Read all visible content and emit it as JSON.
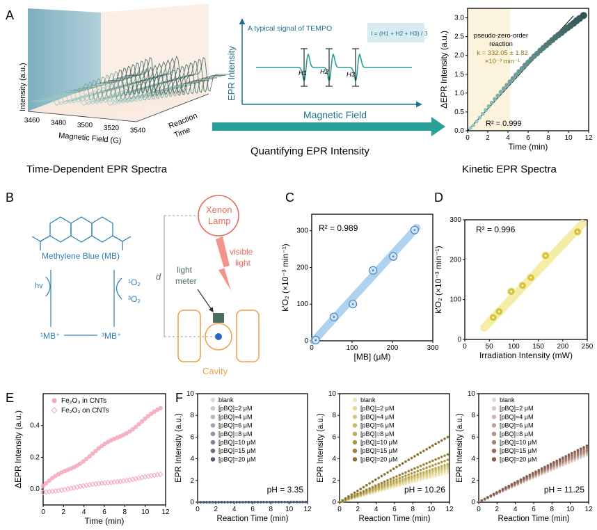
{
  "labels": {
    "A": "A",
    "B": "B",
    "C": "C",
    "D": "D",
    "E": "E",
    "F": "F"
  },
  "panelA": {
    "spectra3d": {
      "ylabel": "Intensity (a.u.)",
      "xlabel": "Magnetic Field (G)",
      "xticks": [
        "3460",
        "3480",
        "3500",
        "3520",
        "3540"
      ],
      "zlabel_1": "Reaction",
      "zlabel_2": "Time",
      "caption": "Time-Dependent EPR Spectra"
    },
    "tempo": {
      "title": "A typical signal of TEMPO",
      "ylabel": "EPR Intensity",
      "xlabel": "Magnetic Field",
      "formula": "I = (H1 + H2 + H3) / 3",
      "h1": "H1",
      "h2": "H2",
      "h3": "H3",
      "arrow_caption": "Quantifying EPR Intensity",
      "color": "#2aa198"
    },
    "caption_right": "Kinetic EPR Spectra"
  },
  "panelB": {
    "molecule": "Methylene Blue (MB)",
    "hv": "hv",
    "o2_singlet": "¹O₂",
    "o2_triplet": "³O₂",
    "mb_singlet": "¹MB⁺",
    "mb_triplet": "³MB⁺",
    "lamp_1": "Xenon",
    "lamp_2": "Lamp",
    "visible_1": "visible",
    "visible_2": "light",
    "meter_1": "light",
    "meter_2": "meter",
    "distance": "d",
    "cavity": "Cavity",
    "blue": "#2f7fb5",
    "orange": "#f0a24a",
    "red": "#e86a5a"
  },
  "chart_data": [
    {
      "id": "A-kinetic",
      "type": "scatter",
      "ylabel": "ΔEPR Intensity (a.u.)",
      "xlabel": "Time (min)",
      "xlim": [
        0,
        12
      ],
      "ylim": [
        0,
        3.25
      ],
      "xticks": [
        0,
        2,
        4,
        6,
        8,
        10,
        12
      ],
      "yticks": [
        0.0,
        0.5,
        1.0,
        1.5,
        2.0,
        2.5,
        3.0
      ],
      "xtick_labels": [
        "0",
        "2",
        "4",
        "6",
        "8",
        "10",
        "12"
      ],
      "ytick_labels": [
        "0.0",
        "0.5",
        "1.0",
        "1.5",
        "2.0",
        "2.5",
        "3.0"
      ],
      "annotation_1": "pseudo-zero-order",
      "annotation_2": "reaction",
      "annotation_3": "k = 332.05 ± 1.82",
      "annotation_4": "×10⁻³ min⁻¹",
      "r2": "R² = 0.999",
      "shaded_x": [
        0,
        4.2
      ],
      "fit": [
        [
          0,
          0
        ],
        [
          10.5,
          3.05
        ]
      ],
      "x": [
        0.3,
        0.6,
        0.9,
        1.2,
        1.5,
        1.8,
        2.1,
        2.4,
        2.7,
        3.0,
        3.3,
        3.6,
        3.9,
        4.2,
        4.5,
        4.8,
        5.1,
        5.4,
        5.7,
        6.0,
        6.3,
        6.6,
        6.9,
        7.2,
        7.5,
        7.8,
        8.1,
        8.4,
        8.7,
        9.0,
        9.3,
        9.6,
        9.9,
        10.2,
        10.5,
        10.8,
        11.1,
        11.5
      ],
      "y": [
        0.07,
        0.15,
        0.25,
        0.35,
        0.45,
        0.55,
        0.65,
        0.74,
        0.84,
        0.93,
        1.03,
        1.12,
        1.21,
        1.3,
        1.39,
        1.48,
        1.57,
        1.65,
        1.74,
        1.82,
        1.9,
        1.98,
        2.05,
        2.13,
        2.2,
        2.27,
        2.34,
        2.41,
        2.48,
        2.54,
        2.6,
        2.67,
        2.73,
        2.79,
        2.85,
        2.92,
        2.98,
        3.06
      ]
    },
    {
      "id": "C",
      "type": "scatter",
      "ylabel": "k'O₂ (×10⁻³ min⁻¹)",
      "xlabel": "[MB] (μM)",
      "xlim": [
        0,
        300
      ],
      "ylim": [
        0,
        345
      ],
      "xticks": [
        0,
        100,
        200,
        300
      ],
      "yticks": [
        0,
        100,
        200,
        300
      ],
      "xtick_labels": [
        "0",
        "100",
        "200",
        "300"
      ],
      "ytick_labels": [
        "0",
        "100",
        "200",
        "300"
      ],
      "r2": "R² = 0.989",
      "fit": [
        [
          5,
          0
        ],
        [
          260,
          308
        ]
      ],
      "x": [
        10,
        55,
        102,
        152,
        202,
        255
      ],
      "y": [
        2,
        65,
        100,
        192,
        230,
        302
      ]
    },
    {
      "id": "D",
      "type": "scatter",
      "ylabel": "k'O₂ (×10⁻³ min⁻¹)",
      "xlabel": "Irradiation Intensity (mW)",
      "xlim": [
        0,
        250
      ],
      "ylim": [
        0,
        300
      ],
      "xticks": [
        0,
        50,
        100,
        150,
        200,
        250
      ],
      "yticks": [
        0,
        100,
        200,
        300
      ],
      "xtick_labels": [
        "0",
        "50",
        "100",
        "150",
        "200",
        "250"
      ],
      "ytick_labels": [
        "0",
        "100",
        "200",
        "300"
      ],
      "r2": "R² = 0.996",
      "fit": [
        [
          40,
          30
        ],
        [
          240,
          290
        ]
      ],
      "x": [
        58,
        70,
        95,
        118,
        135,
        165,
        230
      ],
      "y": [
        55,
        70,
        120,
        135,
        155,
        210,
        270
      ]
    },
    {
      "id": "E",
      "type": "scatter",
      "ylabel": "ΔEPR Intensity (a.u.)",
      "xlabel": "Time (min)",
      "xlim": [
        0,
        12
      ],
      "ylim": [
        -0.1,
        0.6
      ],
      "xticks": [
        0,
        2,
        4,
        6,
        8,
        10,
        12
      ],
      "yticks": [
        0.0,
        0.2,
        0.4
      ],
      "xtick_labels": [
        "0",
        "2",
        "4",
        "6",
        "8",
        "10",
        "12"
      ],
      "ytick_labels": [
        "0.0",
        "0.2",
        "0.4"
      ],
      "legend_position": "top-left",
      "series": [
        {
          "name": "Fe₂O₃ in CNTs",
          "marker": "circle",
          "color": "#f4a7b9",
          "slope": 0.0418,
          "offset": 0.02,
          "count": 39
        },
        {
          "name": "Fe₂O₃ on CNTs",
          "marker": "diamond",
          "color": "#f4a7b9",
          "slope": 0.0085,
          "offset": -0.02,
          "count": 39
        }
      ]
    },
    {
      "id": "F1",
      "type": "scatter",
      "ylabel": "EPR Intensity (a.u.)",
      "xlabel": "Reaction Time (min)",
      "xlim": [
        0,
        12
      ],
      "ylim": [
        0,
        10
      ],
      "xticks": [
        0,
        2,
        4,
        6,
        8,
        10,
        12
      ],
      "yticks": [
        0,
        2,
        4,
        6,
        8,
        10
      ],
      "xtick_labels": [
        "0",
        "2",
        "4",
        "6",
        "8",
        "10",
        "12"
      ],
      "ytick_labels": [
        "0",
        "2",
        "4",
        "6",
        "8",
        "10"
      ],
      "ph": "pH = 3.35",
      "legend_position": "top-left",
      "series": [
        {
          "name": "blank",
          "color": "#d9d9d9",
          "final": 0.02
        },
        {
          "name": "[pBQ]=2 μM",
          "color": "#c5c9cf",
          "final": 0.02
        },
        {
          "name": "[pBQ]=4 μM",
          "color": "#b1b7bf",
          "final": 0.02
        },
        {
          "name": "[pBQ]=6 μM",
          "color": "#9da5b0",
          "final": 0.02
        },
        {
          "name": "[pBQ]=8 μM",
          "color": "#8993a0",
          "final": 0.02
        },
        {
          "name": "[pBQ]=10 μM",
          "color": "#758191",
          "final": 0.02
        },
        {
          "name": "[pBQ]=15 μM",
          "color": "#616f81",
          "final": 0.02
        },
        {
          "name": "[pBQ]=20 μM",
          "color": "#4d5d72",
          "final": 0.02
        }
      ]
    },
    {
      "id": "F2",
      "type": "scatter",
      "ylabel": "EPR Intensity (a.u.)",
      "xlabel": "Reaction Time (min)",
      "xlim": [
        0,
        12
      ],
      "ylim": [
        0,
        10
      ],
      "xticks": [
        0,
        2,
        4,
        6,
        8,
        10,
        12
      ],
      "yticks": [
        0,
        2,
        4,
        6,
        8,
        10
      ],
      "xtick_labels": [
        "0",
        "2",
        "4",
        "6",
        "8",
        "10",
        "12"
      ],
      "ytick_labels": [
        "0",
        "2",
        "4",
        "6",
        "8",
        "10"
      ],
      "ph": "pH = 10.26",
      "legend_position": "top-left",
      "series": [
        {
          "name": "blank",
          "color": "#efe6b8",
          "final": 2.7
        },
        {
          "name": "[pBQ]=2 μM",
          "color": "#e5d99a",
          "final": 2.9
        },
        {
          "name": "[pBQ]=4 μM",
          "color": "#d8ca80",
          "final": 3.1
        },
        {
          "name": "[pBQ]=6 μM",
          "color": "#cbbb68",
          "final": 3.3
        },
        {
          "name": "[pBQ]=8 μM",
          "color": "#bcaa55",
          "final": 3.5
        },
        {
          "name": "[pBQ]=10 μM",
          "color": "#ab9845",
          "final": 3.9
        },
        {
          "name": "[pBQ]=15 μM",
          "color": "#998538",
          "final": 4.4
        },
        {
          "name": "[pBQ]=20 μM",
          "color": "#86722c",
          "final": 6.0
        }
      ]
    },
    {
      "id": "F3",
      "type": "scatter",
      "ylabel": "EPR Intensity (a.u.)",
      "xlabel": "Reaction Time (min)",
      "xlim": [
        0,
        12
      ],
      "ylim": [
        0,
        10
      ],
      "xticks": [
        0,
        2,
        4,
        6,
        8,
        10,
        12
      ],
      "yticks": [
        0,
        2,
        4,
        6,
        8,
        10
      ],
      "xtick_labels": [
        "0",
        "2",
        "4",
        "6",
        "8",
        "10",
        "12"
      ],
      "ytick_labels": [
        "0",
        "2",
        "4",
        "6",
        "8",
        "10"
      ],
      "ph": "pH = 11.25",
      "legend_position": "top-left",
      "series": [
        {
          "name": "blank",
          "color": "#e8d8d4",
          "final": 4.3
        },
        {
          "name": "[pBQ]=2 μM",
          "color": "#dcc6bf",
          "final": 4.4
        },
        {
          "name": "[pBQ]=4 μM",
          "color": "#cfb4ab",
          "final": 4.5
        },
        {
          "name": "[pBQ]=6 μM",
          "color": "#c1a297",
          "final": 4.6
        },
        {
          "name": "[pBQ]=8 μM",
          "color": "#b39084",
          "final": 4.7
        },
        {
          "name": "[pBQ]=10 μM",
          "color": "#a47e71",
          "final": 4.8
        },
        {
          "name": "[pBQ]=15 μM",
          "color": "#946c5f",
          "final": 5.0
        },
        {
          "name": "[pBQ]=20 μM",
          "color": "#835a4e",
          "final": 5.2
        }
      ]
    }
  ]
}
